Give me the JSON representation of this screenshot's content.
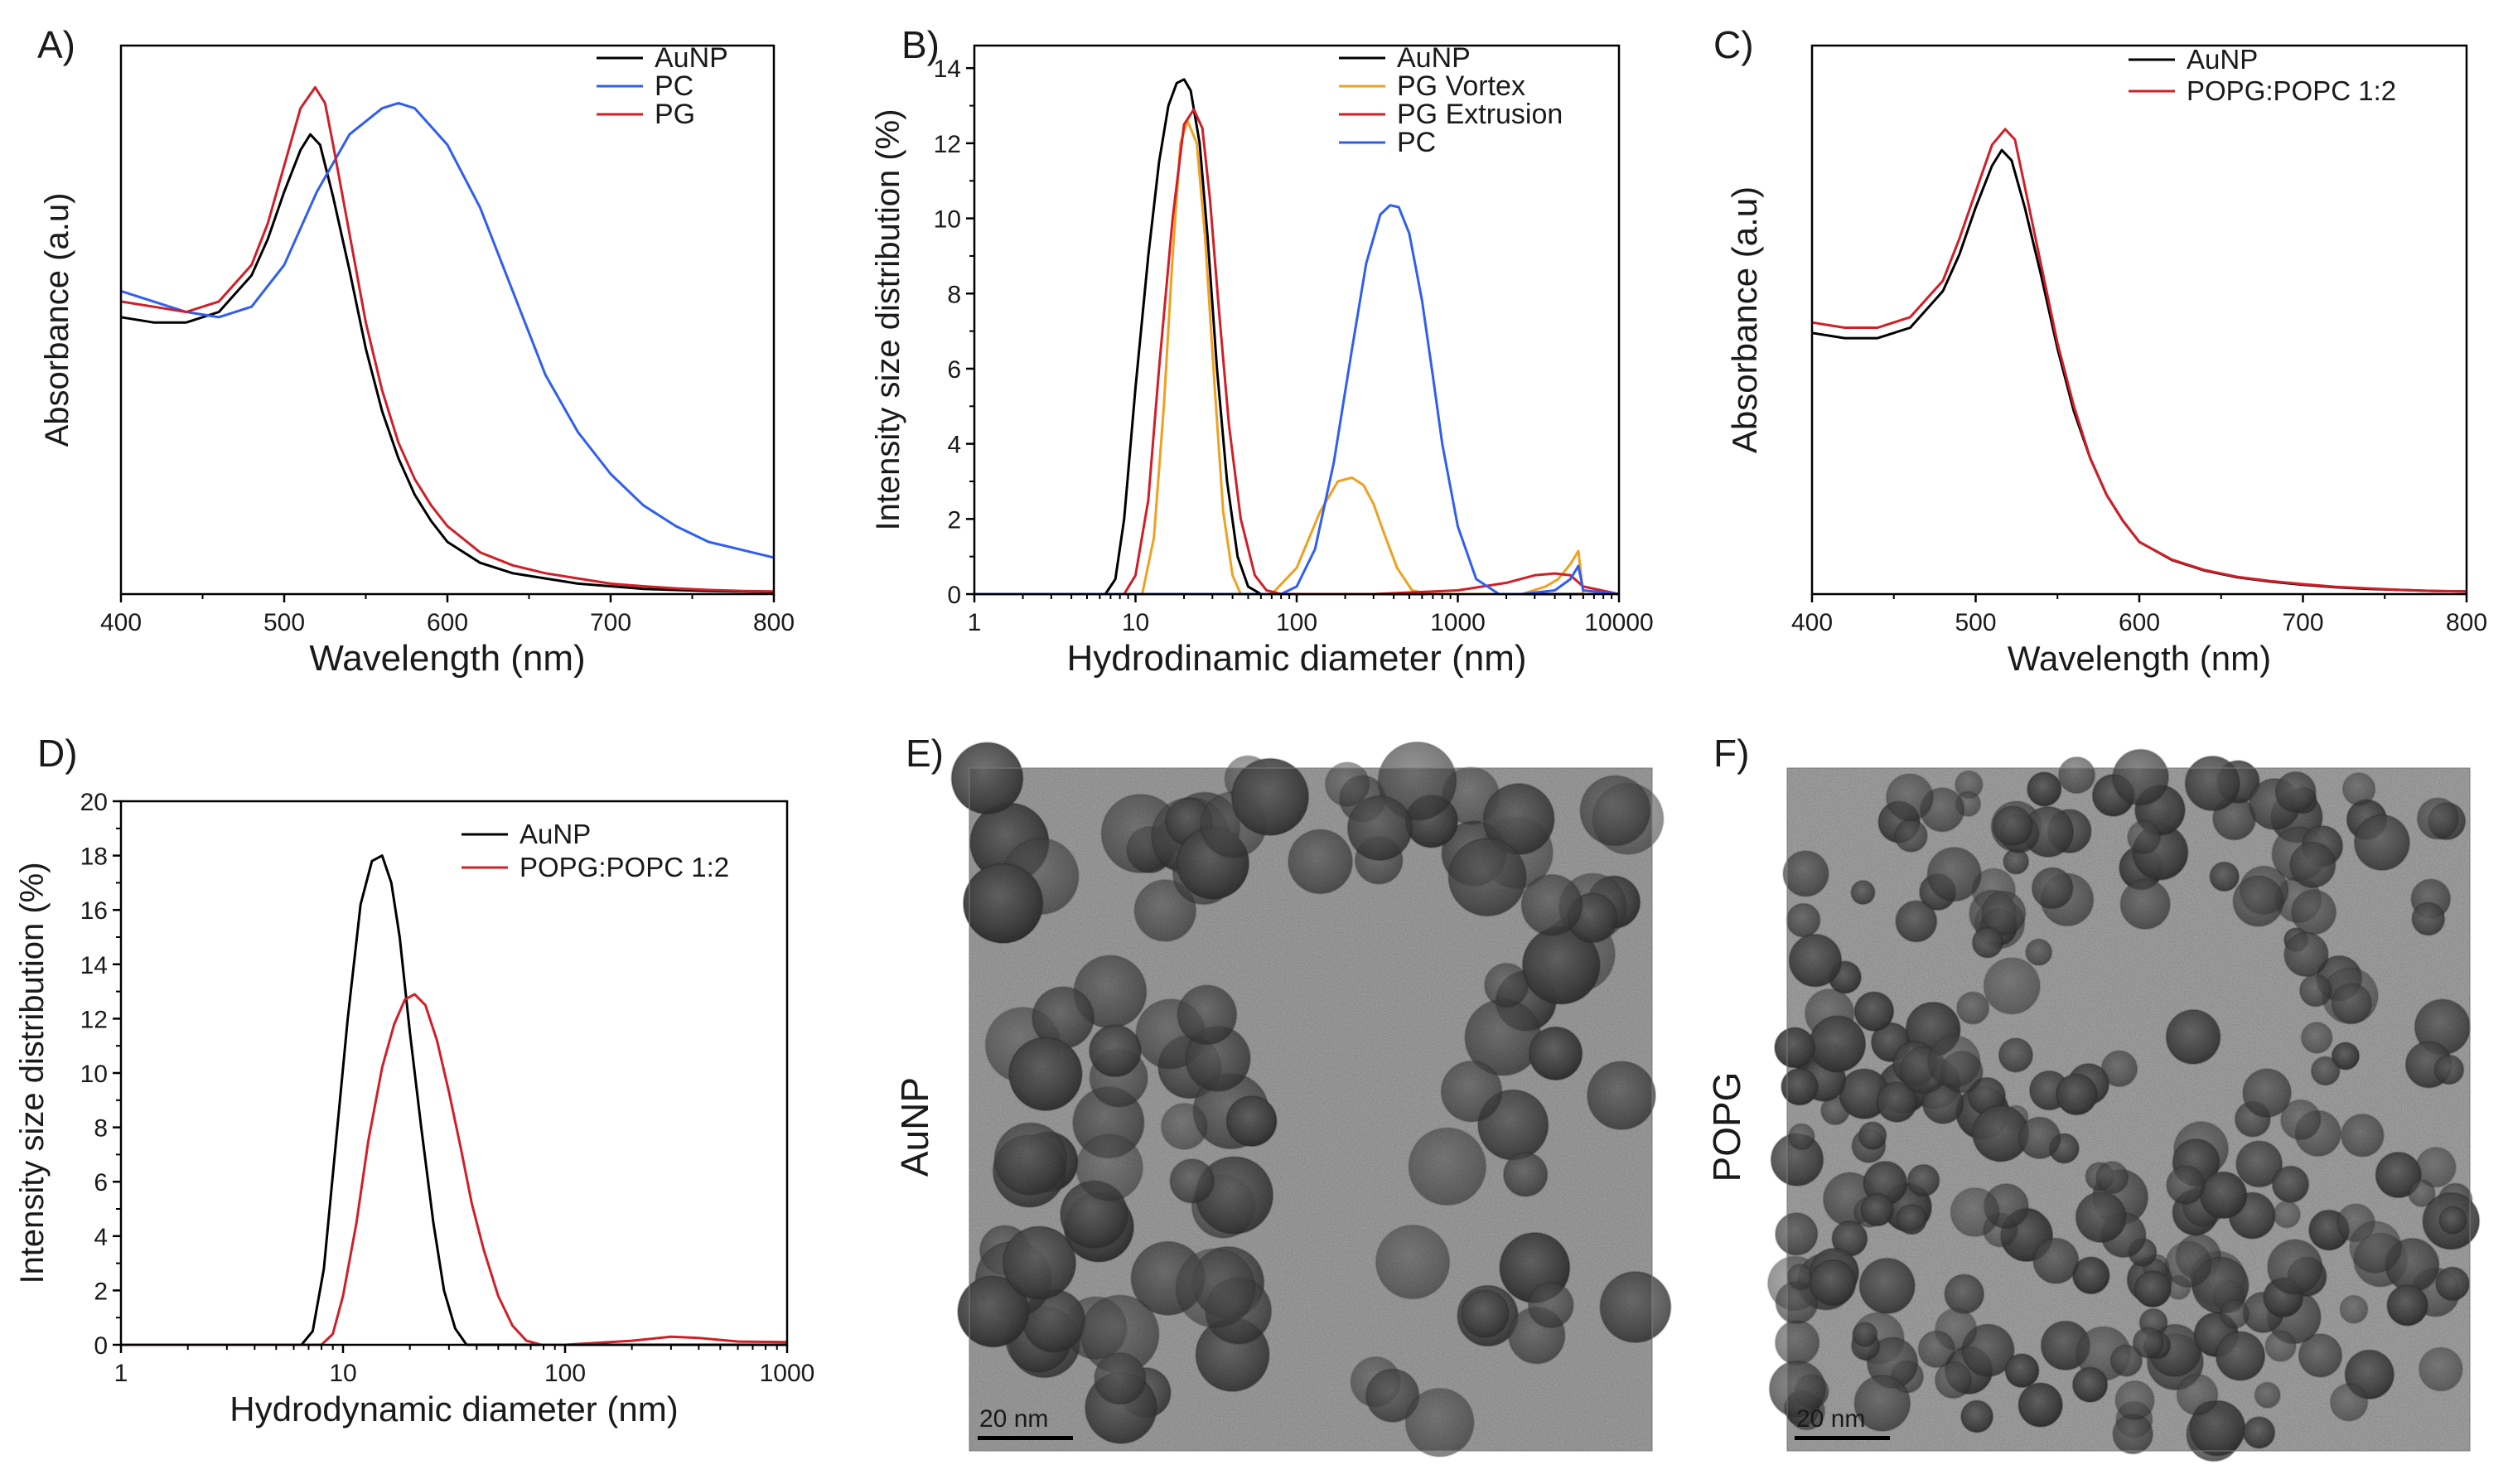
{
  "panels": {
    "a": {
      "label": "A)"
    },
    "b": {
      "label": "B)"
    },
    "c": {
      "label": "C)"
    },
    "d": {
      "label": "D)"
    },
    "e": {
      "label": "E)",
      "side_label": "AuNP",
      "scale_bar": "20 nm"
    },
    "f": {
      "label": "F)",
      "side_label": "POPG",
      "scale_bar": "20 nm"
    }
  },
  "colors": {
    "black": "#000000",
    "blue": "#2f5ef0",
    "red": "#d01f27",
    "orange": "#f0a020"
  },
  "chart_data": [
    {
      "id": "A",
      "type": "line",
      "title": "",
      "xlabel": "Wavelength (nm)",
      "ylabel": "Absorbance (a.u)",
      "xlim": [
        400,
        800
      ],
      "ylim": [
        0,
        1.05
      ],
      "xticks": [
        400,
        500,
        600,
        700,
        800
      ],
      "yticks": [],
      "xscale": "linear",
      "legend": "top-right",
      "series": [
        {
          "name": "AuNP",
          "color": "#000000",
          "x": [
            400,
            420,
            440,
            460,
            480,
            490,
            500,
            510,
            516,
            522,
            530,
            540,
            550,
            560,
            570,
            580,
            590,
            600,
            620,
            640,
            660,
            680,
            700,
            720,
            740,
            760,
            780,
            800
          ],
          "y": [
            0.53,
            0.52,
            0.52,
            0.54,
            0.61,
            0.68,
            0.77,
            0.85,
            0.88,
            0.86,
            0.76,
            0.62,
            0.47,
            0.35,
            0.26,
            0.19,
            0.14,
            0.1,
            0.06,
            0.04,
            0.03,
            0.02,
            0.015,
            0.01,
            0.008,
            0.006,
            0.005,
            0.004
          ]
        },
        {
          "name": "PC",
          "color": "#2f5ef0",
          "x": [
            400,
            420,
            440,
            460,
            480,
            500,
            520,
            540,
            560,
            570,
            580,
            600,
            620,
            640,
            660,
            680,
            700,
            720,
            740,
            760,
            780,
            800
          ],
          "y": [
            0.58,
            0.56,
            0.54,
            0.53,
            0.55,
            0.63,
            0.77,
            0.88,
            0.93,
            0.94,
            0.93,
            0.86,
            0.74,
            0.58,
            0.42,
            0.31,
            0.23,
            0.17,
            0.13,
            0.1,
            0.085,
            0.07
          ]
        },
        {
          "name": "PG",
          "color": "#d01f27",
          "x": [
            400,
            420,
            440,
            460,
            480,
            490,
            500,
            510,
            519,
            525,
            530,
            540,
            550,
            560,
            570,
            580,
            590,
            600,
            620,
            640,
            660,
            680,
            700,
            720,
            740,
            760,
            780,
            800
          ],
          "y": [
            0.56,
            0.55,
            0.54,
            0.56,
            0.63,
            0.71,
            0.82,
            0.93,
            0.97,
            0.94,
            0.86,
            0.69,
            0.52,
            0.39,
            0.29,
            0.22,
            0.17,
            0.13,
            0.08,
            0.055,
            0.04,
            0.03,
            0.02,
            0.015,
            0.011,
            0.008,
            0.006,
            0.005
          ]
        }
      ]
    },
    {
      "id": "B",
      "type": "line",
      "title": "",
      "xlabel": "Hydrodinamic diameter (nm)",
      "ylabel": "Intensity size distribution (%)",
      "xlim": [
        1,
        10000
      ],
      "ylim": [
        0,
        14.6
      ],
      "xscale": "log",
      "xticks": [
        1,
        10,
        100,
        1000,
        10000
      ],
      "yticks": [
        0,
        2,
        4,
        6,
        8,
        10,
        12,
        14
      ],
      "legend": "top-right",
      "series": [
        {
          "name": "AuNP",
          "color": "#000000",
          "x": [
            1,
            6.5,
            7.5,
            8.5,
            10,
            12,
            14,
            16,
            18,
            20,
            22,
            25,
            28,
            32,
            37,
            43,
            50,
            60,
            100,
            10000
          ],
          "y": [
            0,
            0,
            0.4,
            2,
            5.5,
            9,
            11.5,
            13,
            13.6,
            13.7,
            13.4,
            12,
            9.5,
            6,
            3,
            1,
            0.2,
            0,
            0,
            0
          ]
        },
        {
          "name": "PG Vortex",
          "color": "#f0a020",
          "x": [
            1,
            11,
            13,
            15,
            17,
            19,
            21,
            24,
            27,
            31,
            35,
            40,
            45,
            55,
            70,
            100,
            140,
            180,
            220,
            260,
            300,
            350,
            420,
            520,
            650,
            800,
            1000,
            1500,
            2500,
            3500,
            4200,
            5000,
            5600,
            6000,
            10000
          ],
          "y": [
            0,
            0,
            1.5,
            5,
            9,
            12,
            12.6,
            12,
            9.5,
            5.5,
            2.2,
            0.5,
            0,
            0,
            0,
            0.7,
            2.2,
            3,
            3.1,
            2.9,
            2.4,
            1.6,
            0.7,
            0.1,
            0,
            0,
            0,
            0,
            0,
            0.2,
            0.4,
            0.8,
            1.15,
            0,
            0
          ]
        },
        {
          "name": "PG Extrusion",
          "color": "#d01f27",
          "x": [
            1,
            8.5,
            10,
            12,
            14,
            17,
            20,
            23,
            26,
            29,
            33,
            38,
            45,
            55,
            65,
            80,
            100,
            300,
            1000,
            2000,
            3000,
            4000,
            5000,
            6000,
            10000
          ],
          "y": [
            0,
            0,
            0.5,
            2.5,
            6,
            10,
            12.5,
            12.9,
            12.4,
            10.5,
            7.5,
            4.5,
            2,
            0.5,
            0.1,
            0,
            0,
            0,
            0.1,
            0.3,
            0.5,
            0.55,
            0.5,
            0.2,
            0
          ]
        },
        {
          "name": "PC",
          "color": "#2f5ef0",
          "x": [
            1,
            80,
            100,
            130,
            170,
            220,
            270,
            330,
            380,
            430,
            500,
            600,
            700,
            800,
            1000,
            1300,
            1800,
            2500,
            4000,
            5000,
            5600,
            6000,
            10000
          ],
          "y": [
            0,
            0,
            0.2,
            1.2,
            3.5,
            6.5,
            8.8,
            10.1,
            10.35,
            10.3,
            9.6,
            7.8,
            5.8,
            4,
            1.8,
            0.4,
            0,
            0,
            0.1,
            0.4,
            0.75,
            0.1,
            0
          ]
        }
      ]
    },
    {
      "id": "C",
      "type": "line",
      "title": "",
      "xlabel": "Wavelength (nm)",
      "ylabel": "Absorbance (a.u)",
      "xlim": [
        400,
        800
      ],
      "ylim": [
        0,
        1.05
      ],
      "xticks": [
        400,
        500,
        600,
        700,
        800
      ],
      "yticks": [],
      "xscale": "linear",
      "legend": "top-right",
      "series": [
        {
          "name": "AuNP",
          "color": "#000000",
          "x": [
            400,
            420,
            440,
            460,
            480,
            490,
            500,
            510,
            516,
            522,
            530,
            540,
            550,
            560,
            570,
            580,
            590,
            600,
            620,
            640,
            660,
            680,
            700,
            720,
            740,
            760,
            780,
            800
          ],
          "y": [
            0.5,
            0.49,
            0.49,
            0.51,
            0.58,
            0.65,
            0.74,
            0.82,
            0.85,
            0.83,
            0.74,
            0.61,
            0.47,
            0.35,
            0.26,
            0.19,
            0.14,
            0.1,
            0.065,
            0.045,
            0.032,
            0.024,
            0.018,
            0.013,
            0.01,
            0.008,
            0.006,
            0.005
          ]
        },
        {
          "name": "POPG:POPC 1:2",
          "color": "#d01f27",
          "x": [
            400,
            420,
            440,
            460,
            480,
            490,
            500,
            510,
            518,
            524,
            530,
            540,
            550,
            560,
            570,
            580,
            590,
            600,
            620,
            640,
            660,
            680,
            700,
            720,
            740,
            760,
            780,
            800
          ],
          "y": [
            0.52,
            0.51,
            0.51,
            0.53,
            0.6,
            0.68,
            0.77,
            0.86,
            0.89,
            0.87,
            0.78,
            0.63,
            0.48,
            0.36,
            0.26,
            0.19,
            0.14,
            0.1,
            0.066,
            0.046,
            0.033,
            0.025,
            0.019,
            0.014,
            0.011,
            0.008,
            0.006,
            0.005
          ]
        }
      ]
    },
    {
      "id": "D",
      "type": "line",
      "title": "",
      "xlabel": "Hydrodynamic diameter (nm)",
      "ylabel": "Intensity size distribution (%)",
      "xlim": [
        1,
        1000
      ],
      "ylim": [
        0,
        20
      ],
      "xscale": "log",
      "xticks": [
        1,
        10,
        100,
        1000
      ],
      "yticks": [
        0,
        2,
        4,
        6,
        8,
        10,
        12,
        14,
        16,
        18,
        20
      ],
      "legend": "top-right",
      "series": [
        {
          "name": "AuNP",
          "color": "#000000",
          "x": [
            1,
            6.5,
            7.3,
            8.2,
            9.3,
            10.5,
            12,
            13.5,
            15,
            16.5,
            18,
            20,
            22.5,
            25.5,
            28.5,
            32,
            36,
            45,
            1000
          ],
          "y": [
            0,
            0,
            0.5,
            2.8,
            7.5,
            12,
            16.2,
            17.8,
            18,
            17,
            15,
            11.5,
            8,
            4.5,
            2,
            0.6,
            0,
            0,
            0
          ]
        },
        {
          "name": "POPG:POPC 1:2",
          "color": "#d01f27",
          "x": [
            1,
            8,
            9,
            10,
            11.5,
            13,
            15,
            17,
            19,
            21,
            23.5,
            26.5,
            30,
            34,
            38,
            43,
            50,
            58,
            67,
            78,
            100,
            200,
            300,
            400,
            600,
            1000
          ],
          "y": [
            0,
            0,
            0.4,
            1.8,
            4.5,
            7.5,
            10.2,
            11.8,
            12.7,
            12.9,
            12.5,
            11.2,
            9.3,
            7.2,
            5.2,
            3.5,
            1.8,
            0.7,
            0.15,
            0,
            0,
            0.15,
            0.3,
            0.25,
            0.12,
            0.1
          ]
        }
      ]
    }
  ]
}
